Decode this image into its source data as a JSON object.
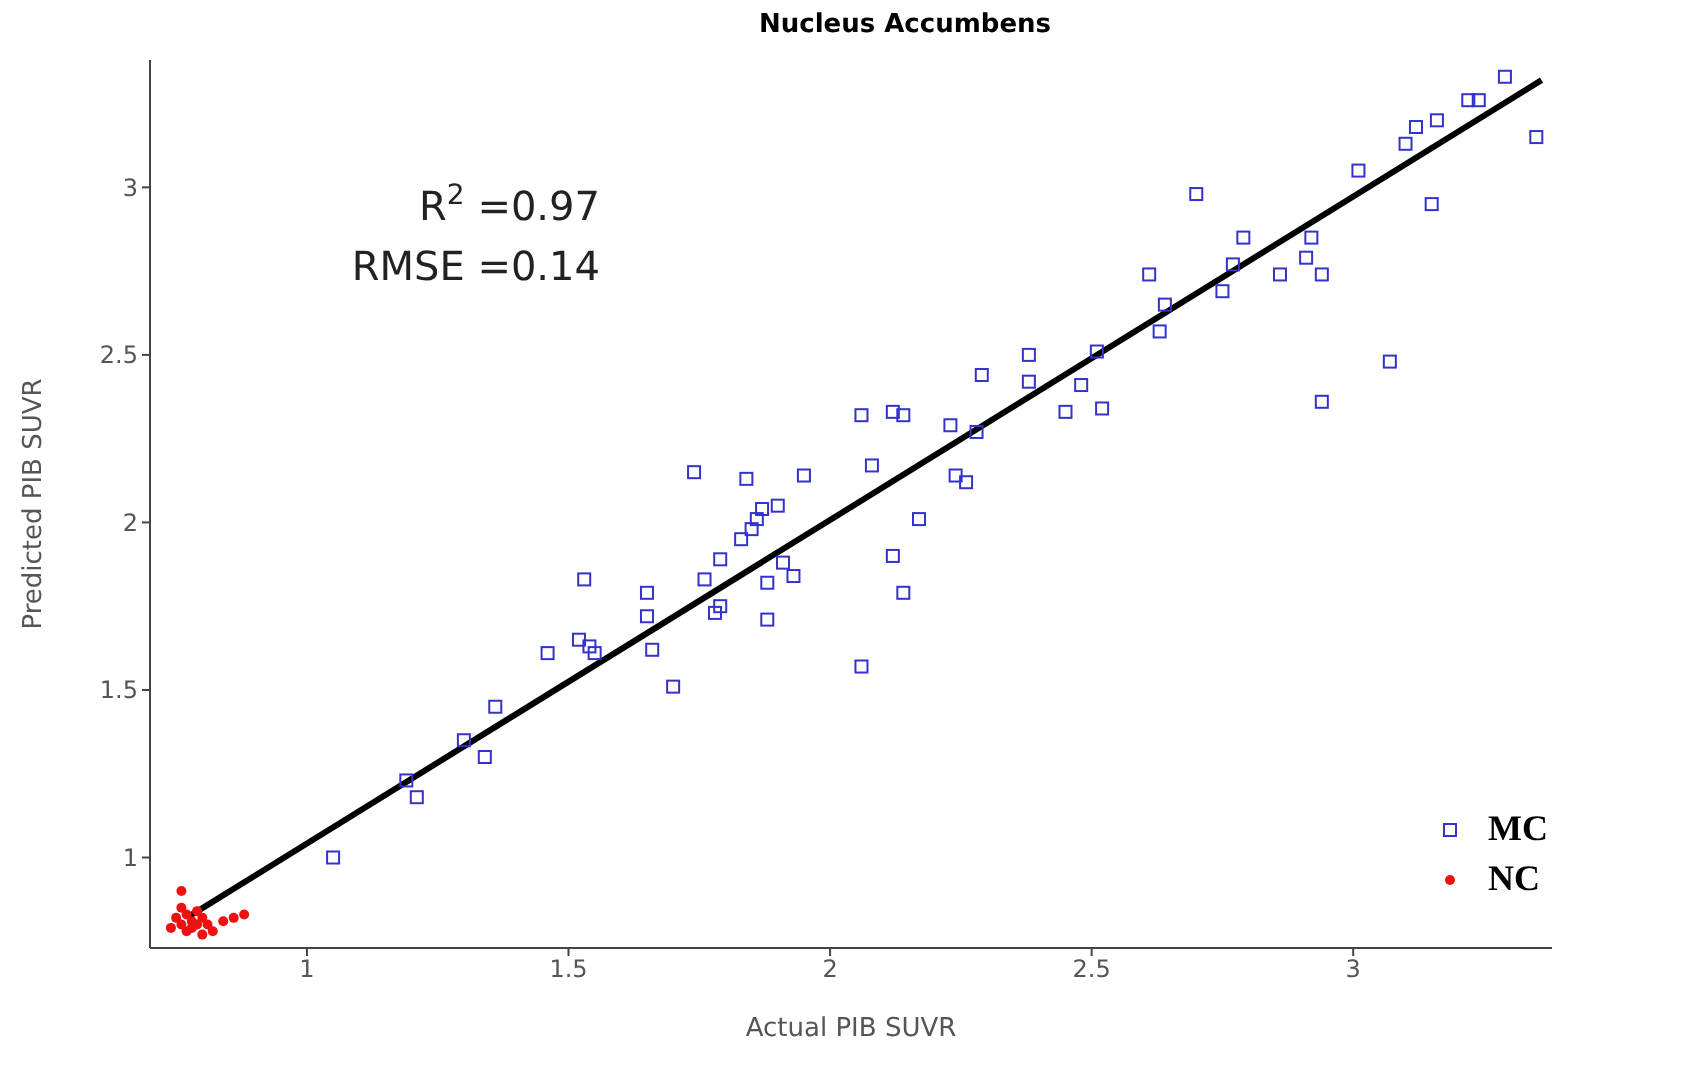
{
  "chart_data": {
    "type": "scatter",
    "title": "Nucleus Accumbens",
    "xlabel": "Actual PIB SUVR",
    "ylabel": "Predicted PIB SUVR",
    "annotations": [
      "R$^{2}$ =0.97",
      "RMSE =0.14"
    ],
    "xlim": [
      0.7,
      3.38
    ],
    "ylim": [
      0.73,
      3.38
    ],
    "xticks": [
      1,
      1.5,
      2,
      2.5,
      3
    ],
    "yticks": [
      1,
      1.5,
      2,
      2.5,
      3
    ],
    "legend": "bottom right",
    "series": [
      {
        "name": "MC",
        "color": "#3333cc",
        "marker": "square",
        "x": [
          1.05,
          1.19,
          1.21,
          1.3,
          1.34,
          1.36,
          1.46,
          1.52,
          1.53,
          1.54,
          1.55,
          1.65,
          1.66,
          1.65,
          1.7,
          1.74,
          1.76,
          1.78,
          1.79,
          1.79,
          1.84,
          1.83,
          1.85,
          1.86,
          1.87,
          1.88,
          1.88,
          1.9,
          1.91,
          1.93,
          1.95,
          2.06,
          2.06,
          2.08,
          2.12,
          2.14,
          2.12,
          2.14,
          2.17,
          2.23,
          2.24,
          2.26,
          2.28,
          2.29,
          2.38,
          2.38,
          2.45,
          2.48,
          2.51,
          2.52,
          2.61,
          2.63,
          2.64,
          2.7,
          2.75,
          2.77,
          2.79,
          2.86,
          2.91,
          2.92,
          2.94,
          2.94,
          3.01,
          3.07,
          3.1,
          3.12,
          3.15,
          3.16,
          3.22,
          3.24,
          3.29,
          3.35
        ],
        "values": [
          1.0,
          1.23,
          1.18,
          1.35,
          1.3,
          1.45,
          1.61,
          1.65,
          1.83,
          1.63,
          1.61,
          1.72,
          1.62,
          1.79,
          1.51,
          2.15,
          1.83,
          1.73,
          1.75,
          1.89,
          2.13,
          1.95,
          1.98,
          2.01,
          2.04,
          1.82,
          1.71,
          2.05,
          1.88,
          1.84,
          2.14,
          1.57,
          2.32,
          2.17,
          2.33,
          2.32,
          1.9,
          1.79,
          2.01,
          2.29,
          2.14,
          2.12,
          2.27,
          2.44,
          2.42,
          2.5,
          2.33,
          2.41,
          2.51,
          2.34,
          2.74,
          2.57,
          2.65,
          2.98,
          2.69,
          2.77,
          2.85,
          2.74,
          2.79,
          2.85,
          2.74,
          2.36,
          3.05,
          2.48,
          3.13,
          3.18,
          2.95,
          3.2,
          3.26,
          3.26,
          3.33,
          3.15
        ]
      },
      {
        "name": "NC",
        "color": "#ee1111",
        "marker": "circle",
        "x": [
          0.74,
          0.75,
          0.76,
          0.76,
          0.77,
          0.77,
          0.78,
          0.78,
          0.79,
          0.79,
          0.8,
          0.81,
          0.82,
          0.84,
          0.86,
          0.88,
          0.76,
          0.8
        ],
        "values": [
          0.79,
          0.82,
          0.8,
          0.9,
          0.78,
          0.83,
          0.81,
          0.79,
          0.84,
          0.8,
          0.82,
          0.8,
          0.78,
          0.81,
          0.82,
          0.83,
          0.85,
          0.77
        ]
      },
      {
        "type": "line",
        "color": "#000000",
        "marker": "none",
        "x": [
          0.77,
          3.36
        ],
        "values": [
          0.82,
          3.32
        ]
      }
    ]
  }
}
